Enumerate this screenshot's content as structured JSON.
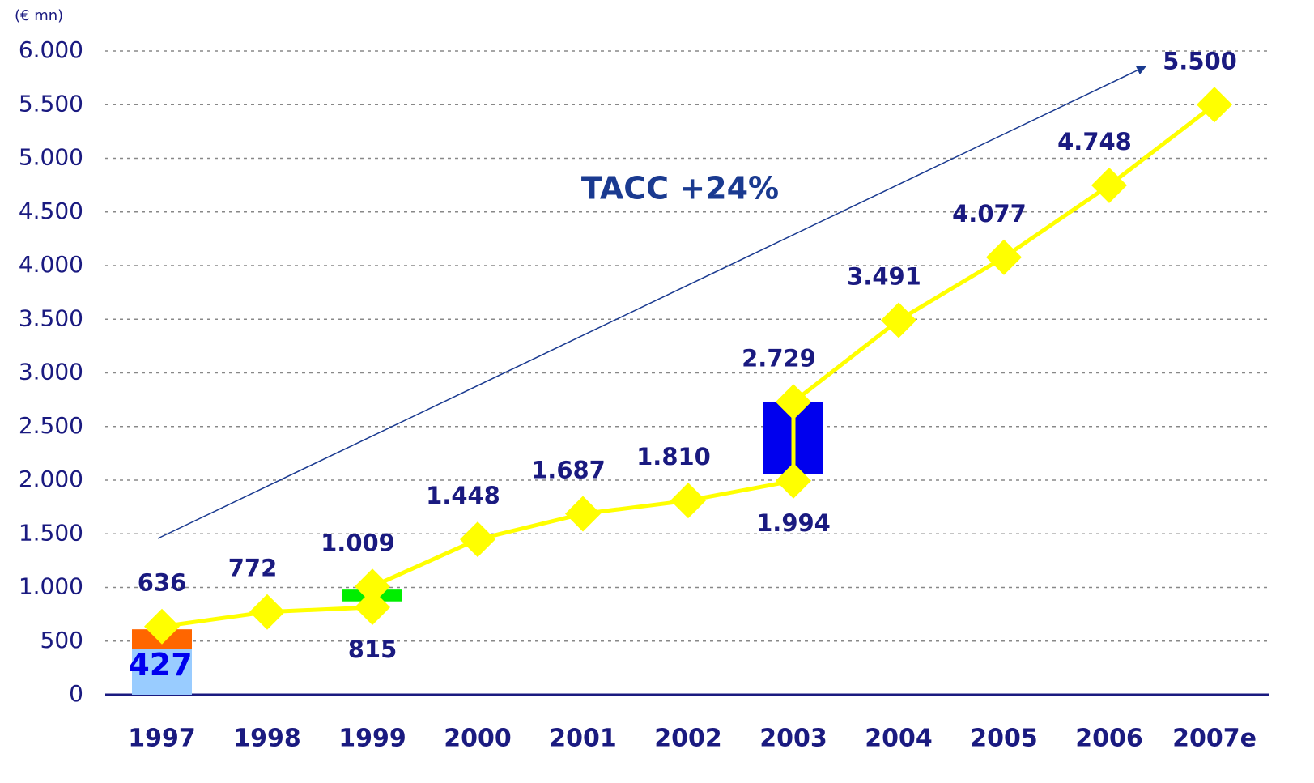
{
  "chart_data": {
    "type": "line",
    "unit_label": "(€ mn)",
    "annotation": "TACC +24%",
    "categories": [
      "1997",
      "1998",
      "1999",
      "2000",
      "2001",
      "2002",
      "2003",
      "2004",
      "2005",
      "2006",
      "2007e"
    ],
    "series": [
      {
        "color": "#ffff00",
        "values": [
          636,
          772,
          1009,
          1448,
          1687,
          1810,
          2729,
          3491,
          4077,
          4748,
          5500
        ],
        "value_labels": [
          "636",
          "772",
          "1.009",
          "1.448",
          "1.687",
          "1.810",
          "2.729",
          "3.491",
          "4.077",
          "4.748",
          "5.500"
        ],
        "low_values": [
          null,
          null,
          815,
          null,
          null,
          null,
          1994,
          null,
          null,
          null,
          null
        ],
        "low_value_labels": [
          null,
          null,
          "815",
          null,
          null,
          null,
          "1.994",
          null,
          null,
          null,
          null
        ]
      }
    ],
    "boxes": [
      {
        "category": 0,
        "bottom": 0,
        "top": 427,
        "color": "#99ccff",
        "label": "427"
      },
      {
        "category": 0,
        "bottom": 427,
        "top": 610,
        "color": "#ff6600"
      },
      {
        "category": 2,
        "bottom": 870,
        "top": 980,
        "color": "#00ee00"
      },
      {
        "category": 6,
        "bottom": 2060,
        "top": 2730,
        "color": "#0000ee"
      }
    ],
    "ylim": [
      0,
      6000
    ],
    "yticks": [
      0,
      500,
      {
        "value": 1000,
        "label": "1.000"
      },
      {
        "value": 1500,
        "label": "1.500"
      },
      {
        "value": 2000,
        "label": "2.000"
      },
      {
        "value": 2500,
        "label": "2.500"
      },
      {
        "value": 3000,
        "label": "3.000"
      },
      {
        "value": 3500,
        "label": "3.500"
      },
      {
        "value": 4000,
        "label": "4.000"
      },
      {
        "value": 4500,
        "label": "4.500"
      },
      {
        "value": 5000,
        "label": "5.000"
      },
      {
        "value": 5500,
        "label": "5.500"
      },
      {
        "value": 6000,
        "label": "6.000"
      }
    ],
    "grid": true
  }
}
